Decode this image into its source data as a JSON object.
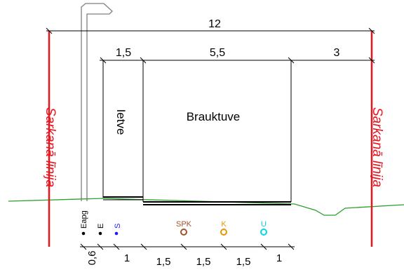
{
  "dimensions": {
    "total": "12",
    "segments_top": [
      "1,5",
      "5,5",
      "3"
    ],
    "segments_bottom": [
      "0,6",
      "1",
      "1,5",
      "1,5",
      "1,5",
      "1"
    ]
  },
  "labels": {
    "red_line_left": "Sarkanā līnija",
    "red_line_right": "Sarkanā līnija",
    "sidewalk": "Ietve",
    "roadway": "Brauktuve"
  },
  "utilities": [
    {
      "code": "Eapg",
      "color": "#000000"
    },
    {
      "code": "E",
      "color": "#000000"
    },
    {
      "code": "S",
      "color": "#1a1aff"
    },
    {
      "code": "SPK",
      "color": "#a0522d"
    },
    {
      "code": "K",
      "color": "#e69500"
    },
    {
      "code": "U",
      "color": "#00d8e8"
    }
  ],
  "colors": {
    "red_line": "#e8141e",
    "ground": "#2ca02c",
    "lines": "#000000"
  }
}
